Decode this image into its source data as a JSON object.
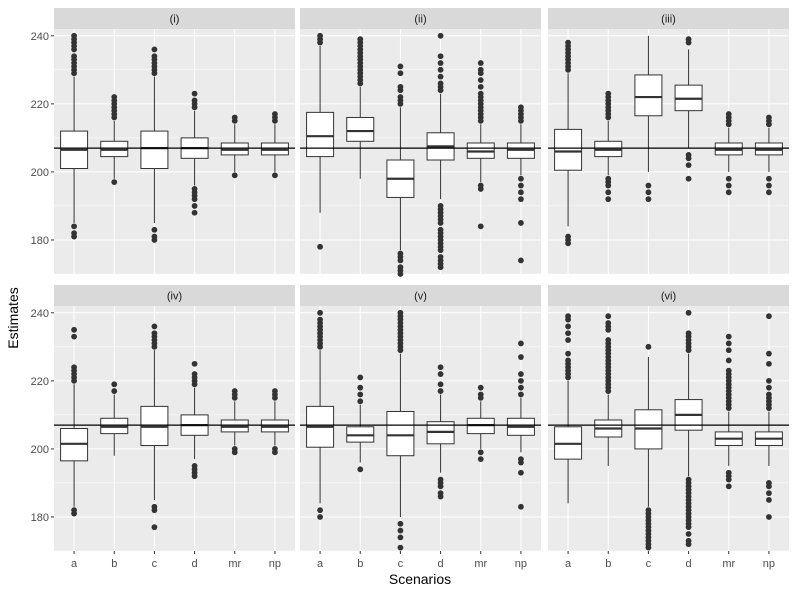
{
  "chart_data": {
    "type": "boxplot",
    "facet_layout": "2 rows x 3 columns",
    "xlabel": "Scenarios",
    "ylabel": "Estimates",
    "categories": [
      "a",
      "b",
      "c",
      "d",
      "mr",
      "np"
    ],
    "ylim": [
      170,
      242
    ],
    "yticks": [
      180,
      200,
      220,
      240
    ],
    "reference_line": 207,
    "panels": [
      {
        "label": "(i)",
        "boxes": [
          {
            "category": "a",
            "q1": 201,
            "median": 206.5,
            "q3": 212,
            "whisker_low": 185,
            "whisker_high": 228,
            "outliers": [
              181,
              182,
              184,
              229,
              230,
              231,
              232,
              233,
              234,
              236,
              237,
              238,
              239,
              240
            ]
          },
          {
            "category": "b",
            "q1": 204.5,
            "median": 206.5,
            "q3": 209,
            "whisker_low": 198,
            "whisker_high": 215,
            "outliers": [
              197,
              216,
              217,
              218,
              219,
              220,
              221,
              222
            ]
          },
          {
            "category": "c",
            "q1": 201,
            "median": 207,
            "q3": 212,
            "whisker_low": 185,
            "whisker_high": 228,
            "outliers": [
              180,
              181,
              183,
              229,
              230,
              231,
              232,
              233,
              234,
              236
            ]
          },
          {
            "category": "d",
            "q1": 204,
            "median": 207,
            "q3": 210,
            "whisker_low": 196,
            "whisker_high": 218,
            "outliers": [
              188,
              190,
              192,
              193,
              194,
              195,
              219,
              220,
              221,
              223
            ]
          },
          {
            "category": "mr",
            "q1": 205,
            "median": 206.5,
            "q3": 208.5,
            "whisker_low": 200,
            "whisker_high": 214,
            "outliers": [
              199,
              215,
              216
            ]
          },
          {
            "category": "np",
            "q1": 205,
            "median": 206.5,
            "q3": 208.5,
            "whisker_low": 200,
            "whisker_high": 214,
            "outliers": [
              199,
              215,
              216,
              217
            ]
          }
        ]
      },
      {
        "label": "(ii)",
        "boxes": [
          {
            "category": "a",
            "q1": 204.5,
            "median": 210.5,
            "q3": 217.5,
            "whisker_low": 188,
            "whisker_high": 237,
            "outliers": [
              178,
              238,
              239,
              240
            ]
          },
          {
            "category": "b",
            "q1": 209,
            "median": 212,
            "q3": 216,
            "whisker_low": 198,
            "whisker_high": 225,
            "outliers": [
              226,
              227,
              228,
              229,
              230,
              231,
              232,
              233,
              234,
              235,
              236,
              237,
              238,
              239
            ]
          },
          {
            "category": "c",
            "q1": 192.5,
            "median": 198,
            "q3": 203.5,
            "whisker_low": 177,
            "whisker_high": 219,
            "outliers": [
              170,
              171,
              172,
              174,
              175,
              176,
              220,
              221,
              222,
              224,
              225,
              229,
              231
            ]
          },
          {
            "category": "d",
            "q1": 203.5,
            "median": 207.5,
            "q3": 211.5,
            "whisker_low": 192,
            "whisker_high": 223,
            "outliers": [
              172,
              173,
              174,
              175,
              177,
              178,
              179,
              180,
              181,
              182,
              183,
              185,
              186,
              187,
              188,
              189,
              190,
              224,
              225,
              226,
              228,
              230,
              232,
              234,
              240
            ]
          },
          {
            "category": "mr",
            "q1": 204,
            "median": 206,
            "q3": 208.5,
            "whisker_low": 197,
            "whisker_high": 214,
            "outliers": [
              184,
              195,
              196,
              215,
              216,
              217,
              218,
              219,
              220,
              221,
              222,
              223,
              225,
              227,
              229,
              230,
              232
            ]
          },
          {
            "category": "np",
            "q1": 204,
            "median": 206.5,
            "q3": 208.5,
            "whisker_low": 199,
            "whisker_high": 214,
            "outliers": [
              174,
              185,
              192,
              194,
              196,
              198,
              215,
              216,
              217,
              218,
              219
            ]
          }
        ]
      },
      {
        "label": "(iii)",
        "boxes": [
          {
            "category": "a",
            "q1": 200.5,
            "median": 206,
            "q3": 212.5,
            "whisker_low": 184,
            "whisker_high": 229,
            "outliers": [
              179,
              180,
              181,
              230,
              231,
              232,
              233,
              234,
              235,
              236,
              237,
              238
            ]
          },
          {
            "category": "b",
            "q1": 204.5,
            "median": 206.5,
            "q3": 209,
            "whisker_low": 199,
            "whisker_high": 215,
            "outliers": [
              192,
              194,
              196,
              197,
              198,
              216,
              217,
              218,
              219,
              220,
              221,
              222,
              223
            ]
          },
          {
            "category": "c",
            "q1": 216.5,
            "median": 222,
            "q3": 228.5,
            "whisker_low": 200,
            "whisker_high": 240,
            "outliers": [
              192,
              194,
              196
            ]
          },
          {
            "category": "d",
            "q1": 218,
            "median": 221.5,
            "q3": 225.5,
            "whisker_low": 207,
            "whisker_high": 236,
            "outliers": [
              198,
              202,
              204,
              205,
              238,
              239
            ]
          },
          {
            "category": "mr",
            "q1": 205,
            "median": 206.5,
            "q3": 208.5,
            "whisker_low": 200,
            "whisker_high": 213,
            "outliers": [
              194,
              196,
              198,
              214,
              215,
              216,
              217
            ]
          },
          {
            "category": "np",
            "q1": 205,
            "median": 206.5,
            "q3": 208.5,
            "whisker_low": 200,
            "whisker_high": 213,
            "outliers": [
              194,
              196,
              198,
              214,
              215,
              216
            ]
          }
        ]
      },
      {
        "label": "(iv)",
        "boxes": [
          {
            "category": "a",
            "q1": 196.5,
            "median": 201.5,
            "q3": 206,
            "whisker_low": 183,
            "whisker_high": 219,
            "outliers": [
              181,
              182,
              220,
              221,
              222,
              223,
              224,
              233,
              235
            ]
          },
          {
            "category": "b",
            "q1": 204.5,
            "median": 206.5,
            "q3": 209,
            "whisker_low": 198,
            "whisker_high": 216,
            "outliers": [
              217,
              219
            ]
          },
          {
            "category": "c",
            "q1": 201,
            "median": 206.5,
            "q3": 212.5,
            "whisker_low": 185,
            "whisker_high": 229,
            "outliers": [
              177,
              182,
              183,
              230,
              231,
              232,
              233,
              234,
              236
            ]
          },
          {
            "category": "d",
            "q1": 204,
            "median": 207,
            "q3": 210,
            "whisker_low": 197,
            "whisker_high": 218,
            "outliers": [
              192,
              193,
              194,
              195,
              219,
              220,
              221,
              222,
              225
            ]
          },
          {
            "category": "mr",
            "q1": 205,
            "median": 206.5,
            "q3": 208.5,
            "whisker_low": 201,
            "whisker_high": 214,
            "outliers": [
              199,
              200,
              215,
              216,
              217
            ]
          },
          {
            "category": "np",
            "q1": 205,
            "median": 206.5,
            "q3": 208.5,
            "whisker_low": 201,
            "whisker_high": 214,
            "outliers": [
              199,
              200,
              215,
              216,
              217
            ]
          }
        ]
      },
      {
        "label": "(v)",
        "boxes": [
          {
            "category": "a",
            "q1": 200.5,
            "median": 206.5,
            "q3": 212.5,
            "whisker_low": 184,
            "whisker_high": 229,
            "outliers": [
              180,
              182,
              230,
              231,
              232,
              233,
              234,
              235,
              236,
              237,
              238,
              240
            ]
          },
          {
            "category": "b",
            "q1": 202,
            "median": 204,
            "q3": 206.5,
            "whisker_low": 196,
            "whisker_high": 213,
            "outliers": [
              194,
              214,
              216,
              218,
              221
            ]
          },
          {
            "category": "c",
            "q1": 198,
            "median": 204,
            "q3": 211,
            "whisker_low": 180,
            "whisker_high": 228,
            "outliers": [
              171,
              174,
              176,
              178,
              229,
              230,
              231,
              232,
              233,
              234,
              235,
              236,
              237,
              238,
              239,
              240
            ]
          },
          {
            "category": "d",
            "q1": 201.5,
            "median": 205,
            "q3": 208,
            "whisker_low": 193,
            "whisker_high": 216,
            "outliers": [
              186,
              187,
              189,
              190,
              191,
              217,
              219,
              222,
              224
            ]
          },
          {
            "category": "mr",
            "q1": 204.5,
            "median": 207,
            "q3": 209,
            "whisker_low": 200,
            "whisker_high": 214,
            "outliers": [
              197,
              199,
              215,
              216,
              218
            ]
          },
          {
            "category": "np",
            "q1": 204,
            "median": 206.5,
            "q3": 209,
            "whisker_low": 199,
            "whisker_high": 215,
            "outliers": [
              183,
              193,
              196,
              197,
              216,
              218,
              220,
              222,
              227,
              231
            ]
          }
        ]
      },
      {
        "label": "(vi)",
        "boxes": [
          {
            "category": "a",
            "q1": 197,
            "median": 201.5,
            "q3": 206.5,
            "whisker_low": 184,
            "whisker_high": 220,
            "outliers": [
              221,
              222,
              223,
              224,
              225,
              226,
              228,
              232,
              234,
              236,
              238,
              239
            ]
          },
          {
            "category": "b",
            "q1": 203.5,
            "median": 206,
            "q3": 208.5,
            "whisker_low": 195,
            "whisker_high": 216,
            "outliers": [
              217,
              218,
              219,
              220,
              221,
              222,
              223,
              224,
              225,
              226,
              227,
              228,
              229,
              230,
              231,
              232,
              235,
              236,
              237,
              239
            ]
          },
          {
            "category": "c",
            "q1": 200,
            "median": 206,
            "q3": 211.5,
            "whisker_low": 183,
            "whisker_high": 227,
            "outliers": [
              171,
              172,
              173,
              174,
              175,
              176,
              177,
              178,
              179,
              180,
              181,
              182,
              230
            ]
          },
          {
            "category": "d",
            "q1": 205.5,
            "median": 210,
            "q3": 214.5,
            "whisker_low": 192,
            "whisker_high": 228,
            "outliers": [
              172,
              173,
              175,
              177,
              178,
              179,
              180,
              181,
              182,
              183,
              184,
              185,
              186,
              187,
              188,
              189,
              190,
              191,
              229,
              230,
              231,
              232,
              233,
              234,
              240
            ]
          },
          {
            "category": "mr",
            "q1": 201,
            "median": 203,
            "q3": 205,
            "whisker_low": 195,
            "whisker_high": 211,
            "outliers": [
              189,
              191,
              192,
              193,
              212,
              213,
              214,
              215,
              216,
              217,
              218,
              219,
              220,
              221,
              222,
              223,
              226,
              229,
              231,
              233
            ]
          },
          {
            "category": "np",
            "q1": 201,
            "median": 203,
            "q3": 205,
            "whisker_low": 195,
            "whisker_high": 211,
            "outliers": [
              180,
              185,
              187,
              189,
              190,
              212,
              213,
              214,
              215,
              216,
              218,
              220,
              225,
              228,
              239
            ]
          }
        ]
      }
    ]
  }
}
